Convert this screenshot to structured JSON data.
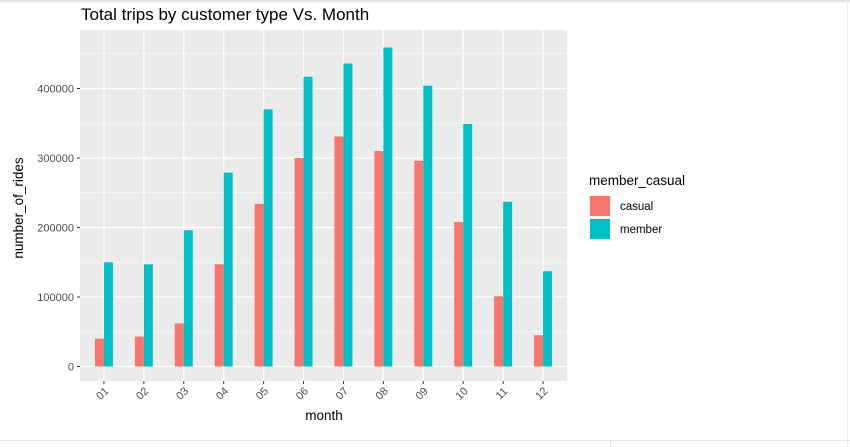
{
  "chart_data": {
    "type": "bar",
    "title": "Total trips by customer type Vs. Month",
    "xlabel": "month",
    "ylabel": "number_of_rides",
    "categories": [
      "01",
      "02",
      "03",
      "04",
      "05",
      "06",
      "07",
      "08",
      "09",
      "10",
      "11",
      "12"
    ],
    "series": [
      {
        "name": "casual",
        "color": "#F8766D",
        "values": [
          40000,
          43000,
          62000,
          147000,
          234000,
          300000,
          331000,
          310000,
          296000,
          208000,
          101000,
          45000
        ]
      },
      {
        "name": "member",
        "color": "#00BFC4",
        "values": [
          150000,
          147000,
          196000,
          279000,
          370000,
          417000,
          436000,
          459000,
          404000,
          349000,
          237000,
          137000
        ]
      }
    ],
    "yticks": [
      "0",
      "100000",
      "200000",
      "300000",
      "400000"
    ],
    "ytick_values": [
      0,
      100000,
      200000,
      300000,
      400000
    ],
    "ylim": [
      -20000,
      482000
    ],
    "legend_title": "member_casual",
    "legend_position": "right",
    "grid": true,
    "panel_background": "#EBEBEB"
  }
}
